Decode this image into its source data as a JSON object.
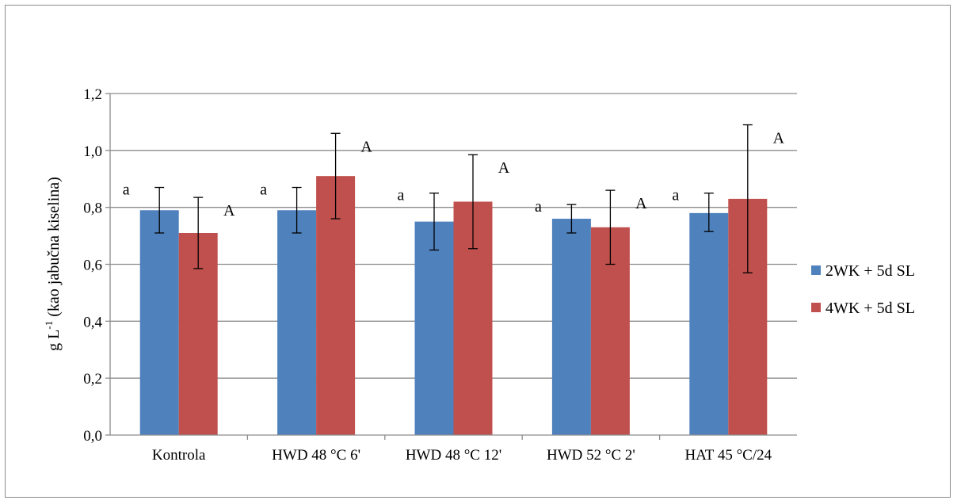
{
  "chart_data": {
    "type": "bar",
    "ylabel_main": "g L",
    "ylabel_sup": "-1",
    "ylabel_rest": " (kao jabučna kiselina)",
    "ylim": [
      0,
      1.2
    ],
    "yticks": [
      "0,0",
      "0,2",
      "0,4",
      "0,6",
      "0,8",
      "1,0",
      "1,2"
    ],
    "grid": true,
    "legend_position": "right",
    "categories": [
      "Kontrola",
      "HWD 48 °C 6'",
      "HWD 48 °C 12'",
      "HWD 52 °C 2'",
      "HAT 45 °C/24"
    ],
    "series": [
      {
        "name": "2WK + 5d SL",
        "color": "#4f81bd",
        "values": [
          0.79,
          0.79,
          0.75,
          0.76,
          0.78
        ],
        "err_low": [
          0.71,
          0.71,
          0.65,
          0.71,
          0.715
        ],
        "err_high": [
          0.87,
          0.87,
          0.85,
          0.81,
          0.85
        ],
        "labels": [
          "a",
          "a",
          "a",
          "a",
          "a"
        ]
      },
      {
        "name": "4WK + 5d SL",
        "color": "#c0504d",
        "values": [
          0.71,
          0.91,
          0.82,
          0.73,
          0.83
        ],
        "err_low": [
          0.585,
          0.76,
          0.655,
          0.6,
          0.57
        ],
        "err_high": [
          0.835,
          1.06,
          0.985,
          0.86,
          1.09
        ],
        "labels": [
          "A",
          "A",
          "A",
          "A",
          "A"
        ]
      }
    ]
  }
}
